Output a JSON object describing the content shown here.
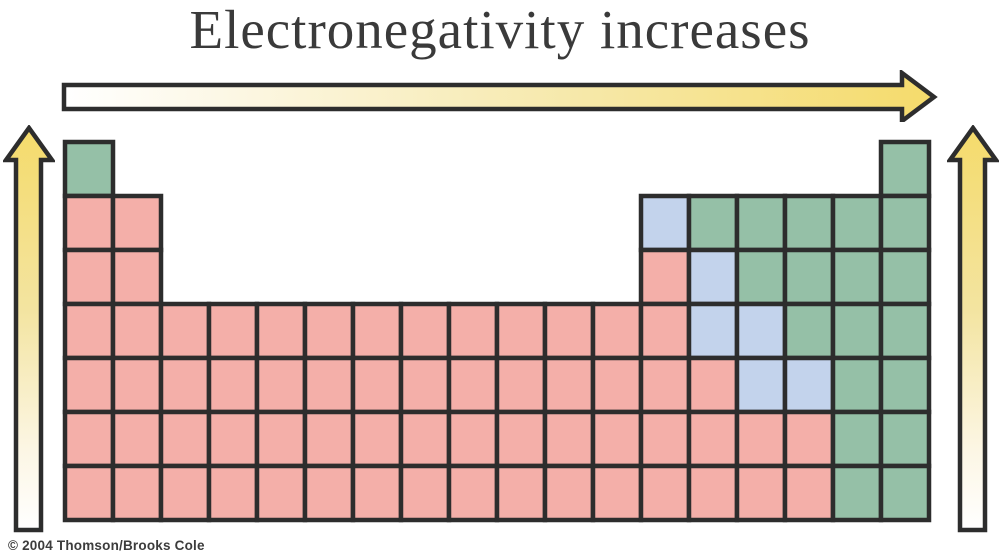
{
  "title": {
    "text": "Electronegativity increases"
  },
  "credit": {
    "text": "© 2004 Thomson/Brooks Cole"
  },
  "colors": {
    "metal": "#F4AFA9",
    "metalloid": "#C3D3EC",
    "nonmetal": "#95C0A7",
    "border": "#2D2D2D",
    "arrow_yellow": "#F5DB6B",
    "arrow_pale": "#F6E9AC",
    "arrow_white": "#FFFFFF",
    "title_text": "#3A3A3A"
  },
  "arrows": {
    "horizontal": {
      "icon": "right-arrow-icon",
      "gradient": "white-to-yellow",
      "direction": "right"
    },
    "left_vertical": {
      "icon": "up-arrow-icon",
      "gradient": "yellow-to-white",
      "direction": "up"
    },
    "right_vertical": {
      "icon": "up-arrow-icon",
      "gradient": "yellow-to-white",
      "direction": "up"
    }
  },
  "table": {
    "columns": 18,
    "period_rows": 7,
    "legend": {
      "M": "metal",
      "S": "metalloid",
      "N": "nonmetal",
      ".": "empty"
    },
    "rows": [
      "N................N",
      "MM..........SNNNNN",
      "MM..........MSNNNN",
      "MMMMMMMMMMMMMSSNNN",
      "MMMMMMMMMMMMMMSSNN",
      "MMMMMMMMMMMMMMMMNN",
      "MMMMMMMMMMMMMMMMNN"
    ]
  }
}
